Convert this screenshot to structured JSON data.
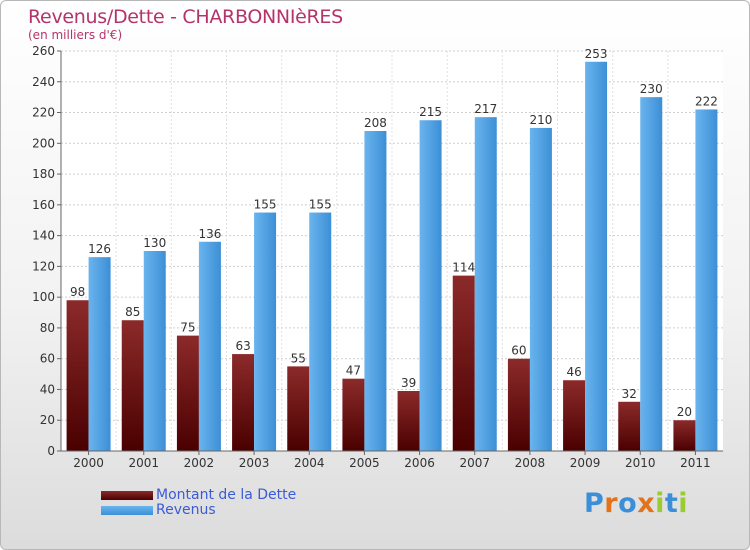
{
  "header": {
    "title": "Revenus/Dette - CHARBONNIèRES",
    "subtitle": "(en milliers d'€)"
  },
  "colors": {
    "dette": "#7a1a1a",
    "revenus": "#4f9fe3",
    "title": "#b5336b",
    "legend_text": "#3b5bd6"
  },
  "chart_data": {
    "type": "bar",
    "title": "Revenus/Dette - CHARBONNIèRES",
    "subtitle": "(en milliers d'€)",
    "xlabel": "",
    "ylabel": "",
    "categories": [
      "2000",
      "2001",
      "2002",
      "2003",
      "2004",
      "2005",
      "2006",
      "2007",
      "2008",
      "2009",
      "2010",
      "2011"
    ],
    "series": [
      {
        "name": "Montant de la Dette",
        "values": [
          98,
          85,
          75,
          63,
          55,
          47,
          39,
          114,
          60,
          46,
          32,
          20
        ]
      },
      {
        "name": "Revenus",
        "values": [
          126,
          130,
          136,
          155,
          155,
          208,
          215,
          217,
          210,
          253,
          230,
          222
        ]
      }
    ],
    "ylim": [
      0,
      260
    ],
    "yticks": [
      0,
      20,
      40,
      60,
      80,
      100,
      120,
      140,
      160,
      180,
      200,
      220,
      240,
      260
    ],
    "grid": true,
    "legend_position": "bottom-left"
  },
  "legend": {
    "items": [
      {
        "label": "Montant de la Dette"
      },
      {
        "label": "Revenus"
      }
    ]
  },
  "brand": {
    "letters": [
      "P",
      "r",
      "o",
      "x",
      "i",
      "t",
      "i"
    ],
    "colors": [
      "#3a8fd8",
      "#e2731c",
      "#3a8fd8",
      "#e2731c",
      "#9acb2f",
      "#3a8fd8",
      "#9acb2f"
    ]
  }
}
